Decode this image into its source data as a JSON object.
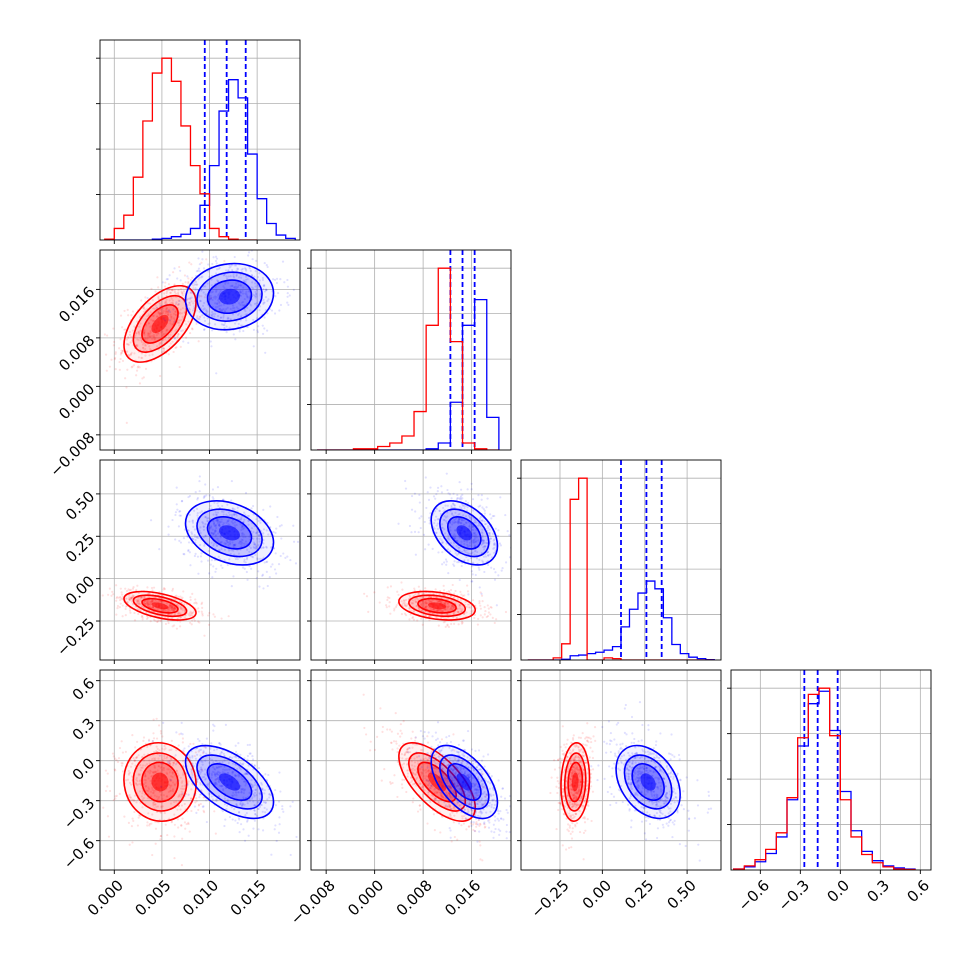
{
  "chart_data": {
    "type": "corner",
    "title": "",
    "n_params": 4,
    "colors": {
      "blue": "#0000ff",
      "red": "#ff0000"
    },
    "params": [
      {
        "label": "",
        "range": [
          -0.0015,
          0.0195
        ],
        "ticks": [
          0.0,
          0.005,
          0.01,
          0.015
        ],
        "tick_labels": [
          "0.000",
          "0.005",
          "0.010",
          "0.015"
        ]
      },
      {
        "label": "",
        "range": [
          -0.0105,
          0.0225
        ],
        "ticks": [
          -0.008,
          0.0,
          0.008,
          0.016
        ],
        "tick_labels": [
          "−0.008",
          "0.000",
          "0.008",
          "0.016"
        ]
      },
      {
        "label": "",
        "range": [
          -0.48,
          0.7
        ],
        "ticks": [
          -0.25,
          0.0,
          0.25,
          0.5
        ],
        "tick_labels": [
          "−0.25",
          "0.00",
          "0.25",
          "0.50"
        ]
      },
      {
        "label": "",
        "range": [
          -0.82,
          0.68
        ],
        "ticks": [
          -0.6,
          -0.3,
          0.0,
          0.3,
          0.6
        ],
        "tick_labels": [
          "−0.6",
          "−0.3",
          "0.0",
          "0.3",
          "0.6"
        ]
      }
    ],
    "series": [
      {
        "color": "blue",
        "means": [
          0.0121,
          0.0148,
          0.27,
          -0.16
        ],
        "stds": [
          0.0022,
          0.0026,
          0.09,
          0.13
        ],
        "quantile_lines": [
          [
            0.0095,
            0.0118,
            0.0138
          ],
          [
            0.0125,
            0.0145,
            0.0165
          ],
          [
            0.11,
            0.26,
            0.35
          ],
          [
            -0.27,
            -0.17,
            -0.02
          ]
        ],
        "hist": [
          {
            "edges": [
              -0.001,
              0.0,
              0.001,
              0.002,
              0.003,
              0.004,
              0.005,
              0.006,
              0.007,
              0.008,
              0.009,
              0.01,
              0.011,
              0.012,
              0.013,
              0.014,
              0.015,
              0.016,
              0.017,
              0.018,
              0.019
            ],
            "counts": [
              0,
              0,
              0,
              0,
              0,
              5,
              10,
              20,
              35,
              70,
              210,
              450,
              780,
              970,
              860,
              520,
              250,
              100,
              30,
              10
            ]
          },
          {
            "edges": [
              -0.0095,
              -0.0075,
              -0.0055,
              -0.0035,
              -0.0015,
              0.0005,
              0.0025,
              0.0045,
              0.0065,
              0.0085,
              0.0105,
              0.0125,
              0.0145,
              0.0165,
              0.0185,
              0.0205
            ],
            "counts": [
              0,
              0,
              0,
              0,
              0,
              0,
              0,
              0,
              0,
              10,
              60,
              410,
              1070,
              1290,
              280
            ]
          },
          {
            "edges": [
              -0.44,
              -0.39,
              -0.34,
              -0.29,
              -0.24,
              -0.19,
              -0.14,
              -0.09,
              -0.04,
              0.01,
              0.06,
              0.11,
              0.16,
              0.21,
              0.26,
              0.31,
              0.36,
              0.41,
              0.46,
              0.51,
              0.56,
              0.61,
              0.66
            ],
            "counts": [
              0,
              0,
              0,
              0,
              10,
              60,
              70,
              90,
              110,
              140,
              190,
              470,
              720,
              950,
              1120,
              1010,
              600,
              220,
              90,
              40,
              20,
              5
            ]
          },
          {
            "edges": [
              -0.8,
              -0.72,
              -0.64,
              -0.56,
              -0.48,
              -0.4,
              -0.32,
              -0.24,
              -0.16,
              -0.08,
              0.0,
              0.08,
              0.16,
              0.24,
              0.32,
              0.4,
              0.48,
              0.56
            ],
            "counts": [
              10,
              30,
              80,
              160,
              320,
              680,
              1200,
              1610,
              1730,
              1350,
              760,
              380,
              180,
              90,
              40,
              20,
              10
            ]
          }
        ]
      },
      {
        "color": "red",
        "means": [
          0.0048,
          0.0103,
          -0.16,
          -0.16
        ],
        "stds": [
          0.0018,
          0.003,
          0.04,
          0.14
        ],
        "hist": [
          {
            "edges": [
              -0.001,
              0.0,
              0.001,
              0.002,
              0.003,
              0.004,
              0.005,
              0.006,
              0.007,
              0.008,
              0.009,
              0.01,
              0.011,
              0.012,
              0.013,
              0.014,
              0.015
            ],
            "counts": [
              5,
              70,
              150,
              380,
              720,
              1010,
              1100,
              960,
              690,
              450,
              280,
              70,
              20,
              5,
              0,
              0
            ]
          },
          {
            "edges": [
              -0.0095,
              -0.0075,
              -0.0055,
              -0.0035,
              -0.0015,
              0.0005,
              0.0025,
              0.0045,
              0.0065,
              0.0085,
              0.0105,
              0.0125,
              0.0145,
              0.0165,
              0.0185,
              0.0205
            ],
            "counts": [
              0,
              0,
              0,
              10,
              10,
              30,
              60,
              120,
              330,
              1070,
              1560,
              930,
              60,
              10,
              0
            ]
          },
          {
            "edges": [
              -0.44,
              -0.39,
              -0.34,
              -0.29,
              -0.24,
              -0.19,
              -0.14,
              -0.09,
              -0.04,
              0.01,
              0.06,
              0.11,
              0.16,
              0.21,
              0.26,
              0.31,
              0.36,
              0.41,
              0.46,
              0.51,
              0.56,
              0.61,
              0.66
            ],
            "counts": [
              0,
              0,
              0,
              30,
              230,
              2280,
              2580,
              0,
              0,
              30,
              20,
              0,
              0,
              0,
              0,
              0,
              0,
              0,
              0,
              0,
              0,
              0
            ]
          },
          {
            "edges": [
              -0.8,
              -0.72,
              -0.64,
              -0.56,
              -0.48,
              -0.4,
              -0.32,
              -0.24,
              -0.16,
              -0.08,
              0.0,
              0.08,
              0.16,
              0.24,
              0.32,
              0.4,
              0.48,
              0.56
            ],
            "counts": [
              10,
              40,
              100,
              200,
              360,
              700,
              1280,
              1700,
              1760,
              1300,
              680,
              320,
              150,
              70,
              30,
              10,
              5
            ]
          }
        ]
      }
    ],
    "grid": true,
    "legend": "none"
  }
}
